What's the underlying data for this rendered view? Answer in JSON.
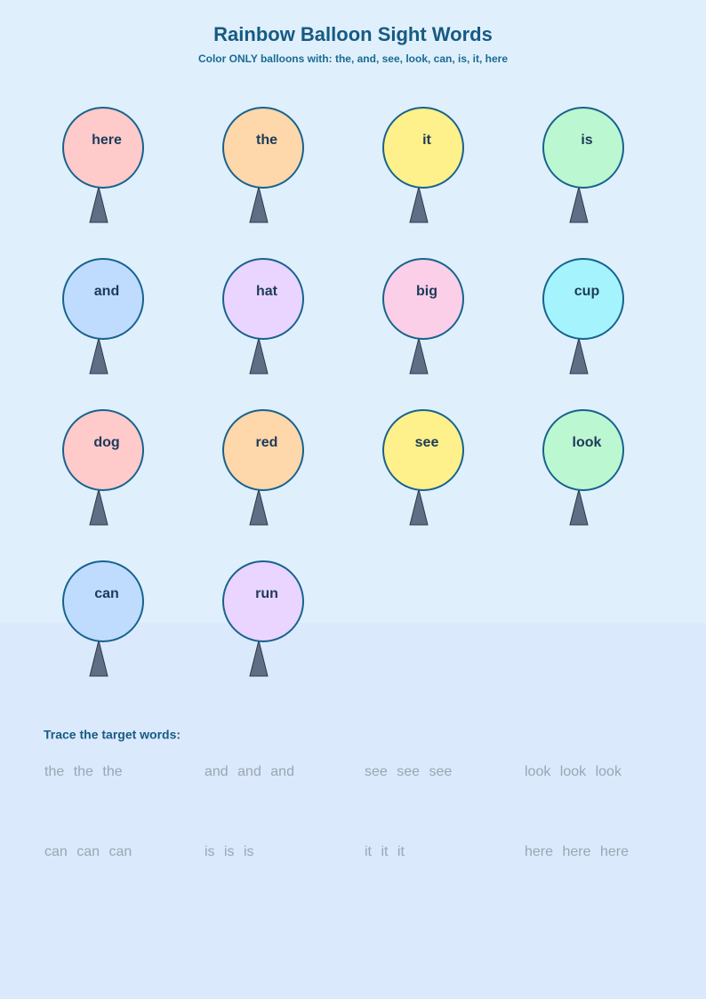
{
  "header": {
    "title": "Rainbow Balloon Sight Words",
    "subtitle": "Color ONLY balloons with: the, and, see, look, can, is, it, here"
  },
  "balloons": [
    "here",
    "the",
    "it",
    "is",
    "and",
    "hat",
    "big",
    "cup",
    "dog",
    "red",
    "see",
    "look",
    "can",
    "run"
  ],
  "trace": {
    "label": "Trace the target words:",
    "words": [
      "the the the",
      "and and and",
      "see see see",
      "look look look",
      "can can can",
      "is is is",
      "it it it",
      "here here here"
    ]
  }
}
